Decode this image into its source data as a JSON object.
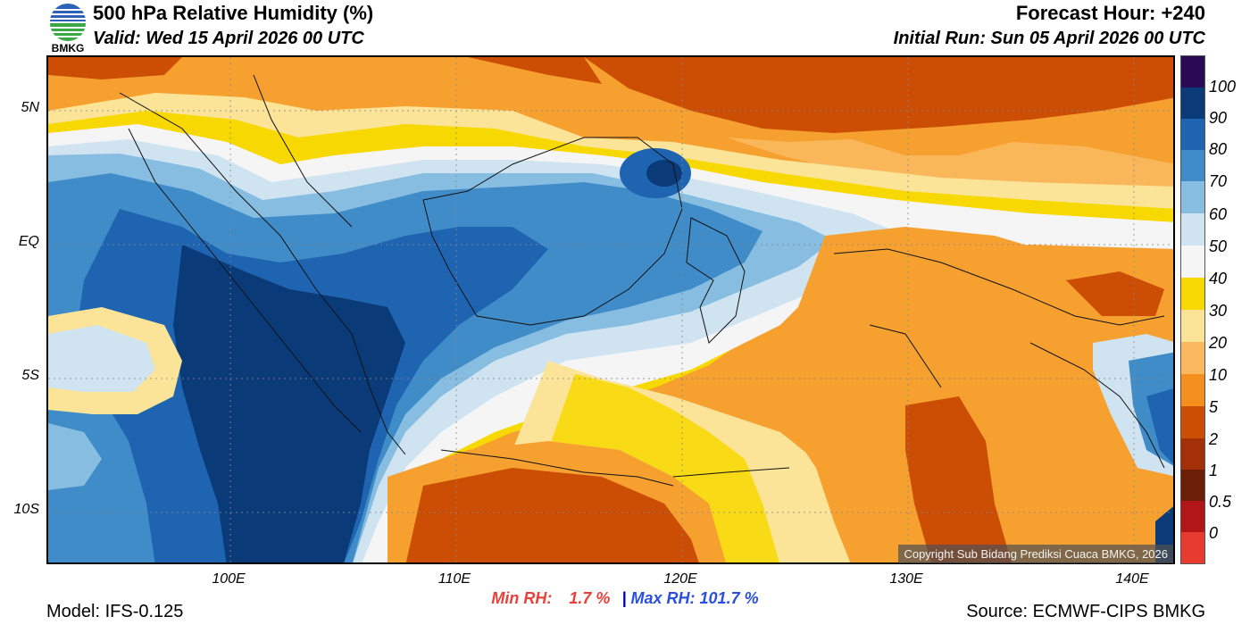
{
  "header": {
    "title": "500 hPa Relative Humidity (%)",
    "valid": "Valid: Wed 15 April 2026 00 UTC",
    "forecast_hour": "Forecast Hour: +240",
    "initial_run": "Initial Run: Sun 05 April 2026 00 UTC",
    "logo_text": "BMKG"
  },
  "map": {
    "lat_ticks": [
      "5N",
      "EQ",
      "5S",
      "10S"
    ],
    "lon_ticks": [
      "100E",
      "110E",
      "120E",
      "130E",
      "140E"
    ]
  },
  "stats": {
    "min_label": "Min RH:",
    "min_value": "1.7 %",
    "separator": "|",
    "max_label": "Max RH:",
    "max_value": "101.7 %"
  },
  "footer": {
    "model": "Model: IFS-0.125",
    "source": "Source: ECMWF-CIPS BMKG",
    "copyright": "Copyright Sub Bidang Prediksi Cuaca BMKG, 2026"
  },
  "colorbar": {
    "labels": [
      "100",
      "90",
      "80",
      "70",
      "60",
      "50",
      "40",
      "30",
      "20",
      "10",
      "5",
      "2",
      "1",
      "0.5",
      "0"
    ],
    "colors": [
      "#2a0a55",
      "#0a3a78",
      "#1f64b0",
      "#3f8cc8",
      "#86bde0",
      "#cfe3f0",
      "#f5f5f5",
      "#f7d800",
      "#fbe497",
      "#fbb95f",
      "#f5901e",
      "#cc4e05",
      "#a33008",
      "#6b1e08",
      "#b31616",
      "#e63b2e"
    ]
  },
  "colors": {
    "min_color": "#e8403a",
    "max_color": "#2a4fe0"
  }
}
